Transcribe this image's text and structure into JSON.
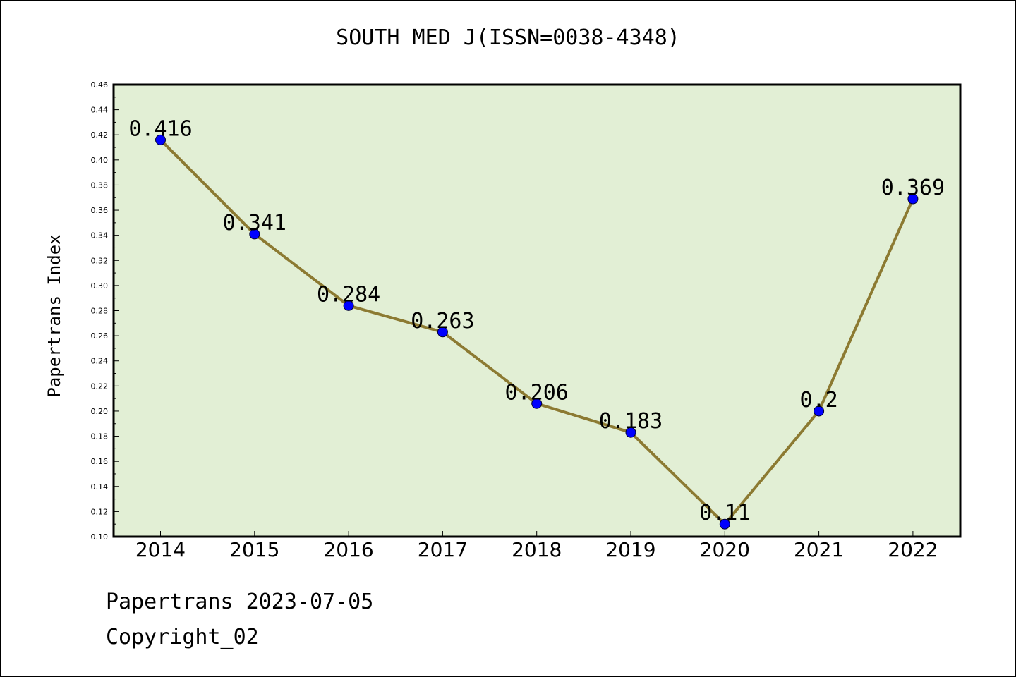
{
  "chart_data": {
    "type": "line",
    "title": "SOUTH MED J(ISSN=0038-4348)",
    "xlabel": "",
    "ylabel": "Papertrans Index",
    "categories": [
      "2014",
      "2015",
      "2016",
      "2017",
      "2018",
      "2019",
      "2020",
      "2021",
      "2022"
    ],
    "values": [
      0.416,
      0.341,
      0.284,
      0.263,
      0.206,
      0.183,
      0.11,
      0.2,
      0.369
    ],
    "data_labels": [
      "0.416",
      "0.341",
      "0.284",
      "0.263",
      "0.206",
      "0.183",
      "0.11",
      "0.2",
      "0.369"
    ],
    "ylim": [
      0.1,
      0.46
    ],
    "yticks": [
      "0.10",
      "0.12",
      "0.14",
      "0.16",
      "0.18",
      "0.20",
      "0.22",
      "0.24",
      "0.26",
      "0.28",
      "0.30",
      "0.32",
      "0.34",
      "0.36",
      "0.38",
      "0.40",
      "0.42",
      "0.44",
      "0.46"
    ],
    "grid": false,
    "colors": {
      "plot_background": "#e2efd5",
      "line": "#8c7a32",
      "marker": "#0000ff"
    }
  },
  "footer": {
    "line1": "Papertrans 2023-07-05",
    "line2": "Copyright_02"
  }
}
